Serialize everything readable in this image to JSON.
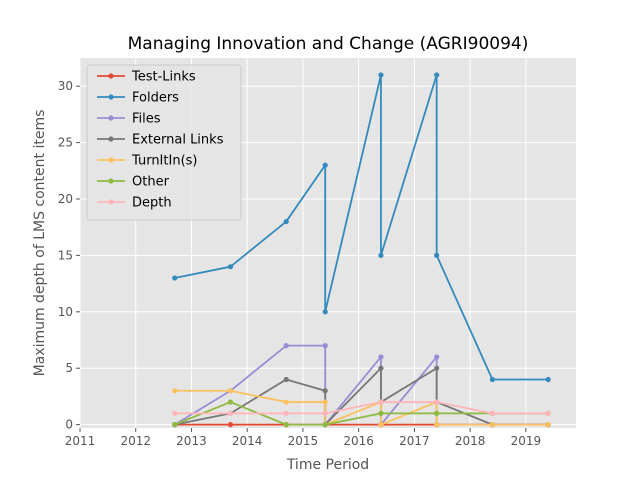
{
  "chart_data": {
    "type": "line",
    "title": "Managing Innovation and Change (AGRI90094)",
    "xlabel": "Time Period",
    "ylabel": "Maximum depth of LMS content items",
    "xlim": [
      2011.0,
      2019.9
    ],
    "ylim": [
      -0.3,
      32.5
    ],
    "xticks": [
      2011,
      2012,
      2013,
      2014,
      2015,
      2016,
      2017,
      2018,
      2019
    ],
    "yticks": [
      0,
      5,
      10,
      15,
      20,
      25,
      30
    ],
    "grid": true,
    "legend_position": "top-left",
    "series": [
      {
        "name": "Test-Links",
        "color": "#e24a33",
        "points": [
          [
            2012.7,
            0
          ],
          [
            2013.7,
            0
          ],
          [
            2014.7,
            0
          ],
          [
            2015.4,
            0
          ],
          [
            2015.4,
            0
          ],
          [
            2016.4,
            0
          ],
          [
            2016.4,
            0
          ],
          [
            2017.4,
            0
          ],
          [
            2017.4,
            0
          ],
          [
            2018.4,
            0
          ],
          [
            2019.4,
            0
          ]
        ]
      },
      {
        "name": "Folders",
        "color": "#348abd",
        "points": [
          [
            2012.7,
            13
          ],
          [
            2013.7,
            14
          ],
          [
            2014.7,
            18
          ],
          [
            2015.4,
            23
          ],
          [
            2015.4,
            10
          ],
          [
            2016.4,
            31
          ],
          [
            2016.4,
            15
          ],
          [
            2017.4,
            31
          ],
          [
            2017.4,
            15
          ],
          [
            2018.4,
            4
          ],
          [
            2019.4,
            4
          ]
        ]
      },
      {
        "name": "Files",
        "color": "#988ed5",
        "points": [
          [
            2012.7,
            0
          ],
          [
            2013.7,
            3
          ],
          [
            2014.7,
            7
          ],
          [
            2015.4,
            7
          ],
          [
            2015.4,
            0
          ],
          [
            2016.4,
            6
          ],
          [
            2016.4,
            0
          ],
          [
            2017.4,
            6
          ],
          [
            2017.4,
            0
          ],
          [
            2018.4,
            0
          ],
          [
            2019.4,
            0
          ]
        ]
      },
      {
        "name": "External Links",
        "color": "#777777",
        "points": [
          [
            2012.7,
            0
          ],
          [
            2013.7,
            1
          ],
          [
            2014.7,
            4
          ],
          [
            2015.4,
            3
          ],
          [
            2015.4,
            0
          ],
          [
            2016.4,
            5
          ],
          [
            2016.4,
            2
          ],
          [
            2017.4,
            5
          ],
          [
            2017.4,
            2
          ],
          [
            2018.4,
            0
          ],
          [
            2019.4,
            0
          ]
        ]
      },
      {
        "name": "TurnItIn(s)",
        "color": "#fbc15e",
        "points": [
          [
            2012.7,
            3
          ],
          [
            2013.7,
            3
          ],
          [
            2014.7,
            2
          ],
          [
            2015.4,
            2
          ],
          [
            2015.4,
            0
          ],
          [
            2016.4,
            2
          ],
          [
            2016.4,
            0
          ],
          [
            2017.4,
            2
          ],
          [
            2017.4,
            0
          ],
          [
            2018.4,
            0
          ],
          [
            2019.4,
            0
          ]
        ]
      },
      {
        "name": "Other",
        "color": "#8eba42",
        "points": [
          [
            2012.7,
            0
          ],
          [
            2013.7,
            2
          ],
          [
            2014.7,
            0
          ],
          [
            2015.4,
            0
          ],
          [
            2015.4,
            0
          ],
          [
            2016.4,
            1
          ],
          [
            2016.4,
            1
          ],
          [
            2017.4,
            1
          ],
          [
            2017.4,
            1
          ],
          [
            2018.4,
            1
          ],
          [
            2019.4,
            1
          ]
        ]
      },
      {
        "name": "Depth",
        "color": "#ffb5b8",
        "points": [
          [
            2012.7,
            1
          ],
          [
            2013.7,
            1
          ],
          [
            2014.7,
            1
          ],
          [
            2015.4,
            1
          ],
          [
            2015.4,
            1
          ],
          [
            2016.4,
            2
          ],
          [
            2016.4,
            2
          ],
          [
            2017.4,
            2
          ],
          [
            2017.4,
            2
          ],
          [
            2018.4,
            1
          ],
          [
            2019.4,
            1
          ]
        ]
      }
    ]
  }
}
